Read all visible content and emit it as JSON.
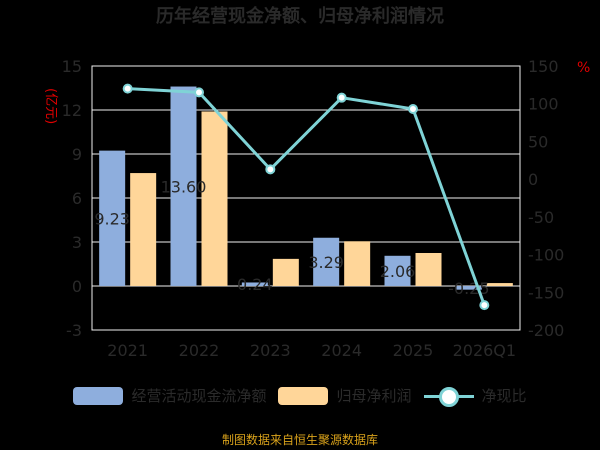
{
  "title": "历年经营现金净额、归母净利润情况",
  "source": "制图数据来自恒生聚源数据库",
  "colors": {
    "cash": "#8eaedd",
    "profit": "#ffd699",
    "ratio": "#7fd3d6",
    "grid": "#f0f0f0",
    "axis_text": "#2a2a2a",
    "unit_text": "#e00000"
  },
  "chart_data": {
    "type": "bar",
    "categories": [
      "2021",
      "2022",
      "2023",
      "2024",
      "2025",
      "2026Q1"
    ],
    "series": [
      {
        "name": "经营活动现金流净额",
        "axis": "left",
        "values": [
          9.23,
          13.6,
          0.24,
          3.29,
          2.06,
          -0.25
        ]
      },
      {
        "name": "归母净利润",
        "axis": "left",
        "values": [
          7.7,
          11.9,
          1.85,
          3.05,
          2.25,
          0.2
        ]
      },
      {
        "name": "净现比",
        "axis": "right",
        "type": "line",
        "values": [
          120,
          115,
          13,
          108,
          93,
          -167
        ]
      }
    ],
    "data_labels": [
      "9.23",
      "13.60",
      "0.24",
      "3.29",
      "2.06",
      "-0.25"
    ],
    "y_left": {
      "unit": "(亿元)",
      "ylim": [
        -3,
        15
      ],
      "ticks": [
        "-3",
        "0",
        "3",
        "6",
        "9",
        "12",
        "15"
      ]
    },
    "y_right": {
      "unit": "%",
      "ylim": [
        -200,
        150
      ],
      "ticks": [
        "-200",
        "-150",
        "-100",
        "-50",
        "0",
        "50",
        "100",
        "150"
      ]
    },
    "grid": true,
    "legend_position": "bottom"
  }
}
